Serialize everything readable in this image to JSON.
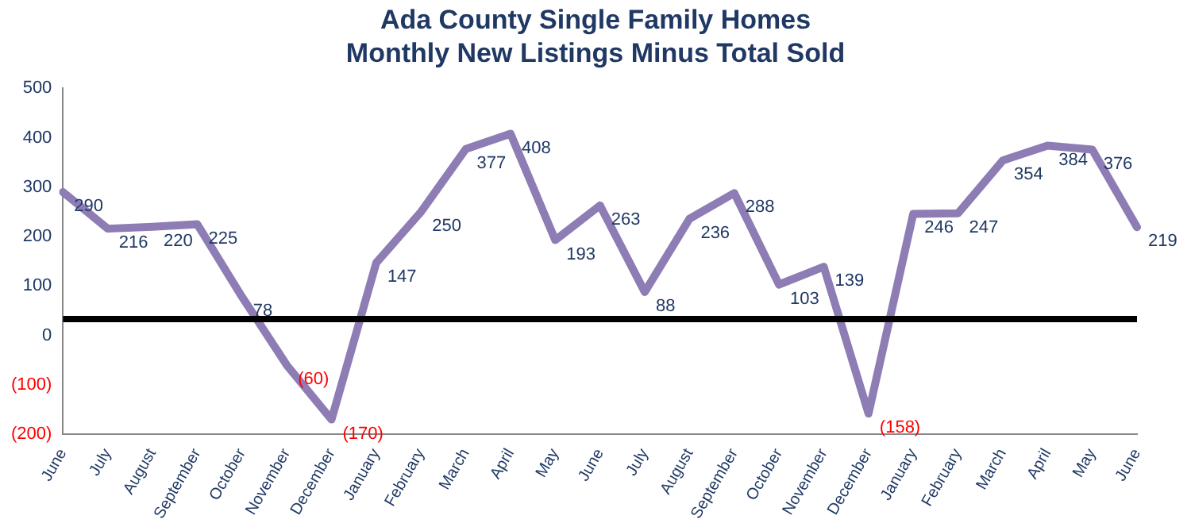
{
  "chart_data": {
    "type": "line",
    "title": "Ada County Single Family Homes",
    "subtitle": "Monthly New Listings Minus Total Sold",
    "categories": [
      "June",
      "July",
      "August",
      "September",
      "October",
      "November",
      "December",
      "January",
      "February",
      "March",
      "April",
      "May",
      "June",
      "July",
      "August",
      "September",
      "October",
      "November",
      "December",
      "January",
      "February",
      "March",
      "April",
      "May",
      "June"
    ],
    "series": [
      {
        "color": "#8e7cb5",
        "values": [
          290,
          216,
          220,
          225,
          78,
          -60,
          -170,
          147,
          250,
          377,
          408,
          193,
          263,
          88,
          236,
          288,
          103,
          139,
          -158,
          246,
          247,
          354,
          384,
          376,
          219
        ],
        "value_labels": [
          "290",
          "216",
          "220",
          "225",
          "78",
          "(60)",
          "(170)",
          "147",
          "250",
          "377",
          "408",
          "193",
          "263",
          "88",
          "236",
          "288",
          "103",
          "139",
          "(158)",
          "246",
          "247",
          "354",
          "384",
          "376",
          "219"
        ]
      }
    ],
    "ylim": [
      -200,
      500
    ],
    "yticks": [
      {
        "value": -200,
        "label": "(200)"
      },
      {
        "value": -100,
        "label": "(100)"
      },
      0,
      100,
      200,
      300,
      400,
      500
    ],
    "ref_lines": [
      {
        "axis": "y",
        "value": 33,
        "color": "#000000"
      }
    ],
    "grid": false,
    "legend": false,
    "marker": "none",
    "line_style": "solid"
  }
}
